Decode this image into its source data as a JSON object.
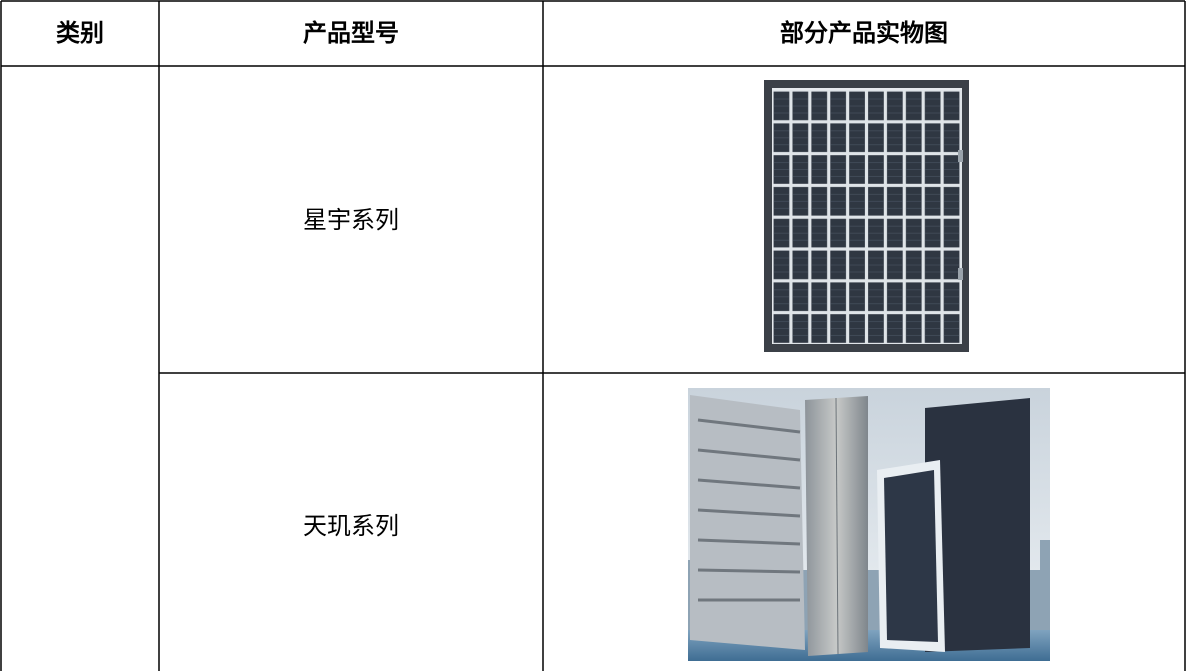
{
  "table": {
    "headers": [
      "类别",
      "产品型号",
      "部分产品实物图"
    ],
    "rows": [
      {
        "model": "星宇系列"
      },
      {
        "model": "天玑系列"
      }
    ]
  }
}
